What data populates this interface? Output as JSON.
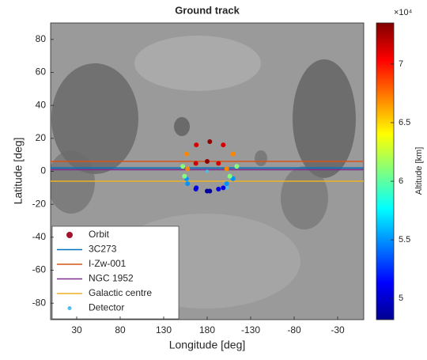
{
  "chart_data": {
    "type": "scatter",
    "title": "Ground track",
    "xlabel": "Longitude [deg]",
    "ylabel": "Latitude [deg]",
    "xlim": [
      0,
      360
    ],
    "xticks": [
      30,
      80,
      130,
      180,
      {
        "value": 230,
        "label": "-130"
      },
      {
        "value": 280,
        "label": "-80"
      },
      {
        "value": 330,
        "label": "-30"
      }
    ],
    "ylim": [
      -90,
      90
    ],
    "yticks": [
      -80,
      -60,
      -40,
      -20,
      0,
      20,
      40,
      60,
      80
    ],
    "legend": "lower left",
    "colorbar": {
      "label": "Altitude [km]",
      "exponent_label": "×10⁴",
      "lim": [
        4.82,
        7.35
      ],
      "ticks": [
        5,
        5.5,
        6,
        6.5,
        7
      ]
    },
    "series": [
      {
        "name": "Orbit",
        "kind": "points",
        "color": "#a2142f",
        "x": [
          183,
          198.5,
          209.8,
          214,
          209.8,
          198.5,
          183,
          167.5,
          156.2,
          152,
          156.2,
          167.5,
          180,
          193,
          202.5,
          206,
          202.5,
          193,
          180,
          167,
          157.5,
          154,
          157.5,
          167
        ],
        "y": [
          18,
          16,
          10.5,
          3,
          -4.5,
          -10,
          -12,
          -10,
          -4.5,
          3,
          10.5,
          16,
          6,
          4.8,
          1.5,
          -3,
          -7.5,
          -10.8,
          -12,
          -10.8,
          -7.5,
          -3,
          1.5,
          4.8
        ],
        "altitude": [
          7.3,
          7.14,
          6.7,
          6.1,
          5.5,
          5.06,
          4.9,
          5.06,
          5.5,
          6.1,
          6.7,
          7.14,
          7.3,
          7.14,
          6.7,
          6.1,
          5.5,
          5.06,
          4.9,
          5.06,
          5.5,
          6.1,
          6.7,
          7.14
        ]
      },
      {
        "name": "3C273",
        "kind": "line",
        "color": "#0072bd",
        "x": [
          0,
          360
        ],
        "y": [
          2,
          2
        ]
      },
      {
        "name": "I-Zw-001",
        "kind": "line",
        "color": "#d95319",
        "x": [
          0,
          360
        ],
        "y": [
          6,
          6
        ]
      },
      {
        "name": "NGC 1952",
        "kind": "line",
        "color": "#7e2f8e",
        "x": [
          0,
          360
        ],
        "y": [
          1,
          1
        ]
      },
      {
        "name": "Galactic centre",
        "kind": "line",
        "color": "#edb120",
        "x": [
          0,
          360
        ],
        "y": [
          -6,
          -6
        ]
      },
      {
        "name": "Detector",
        "kind": "points",
        "color": "#4dbeee",
        "x": [
          180,
          203
        ],
        "y": [
          0,
          -10
        ]
      }
    ]
  }
}
